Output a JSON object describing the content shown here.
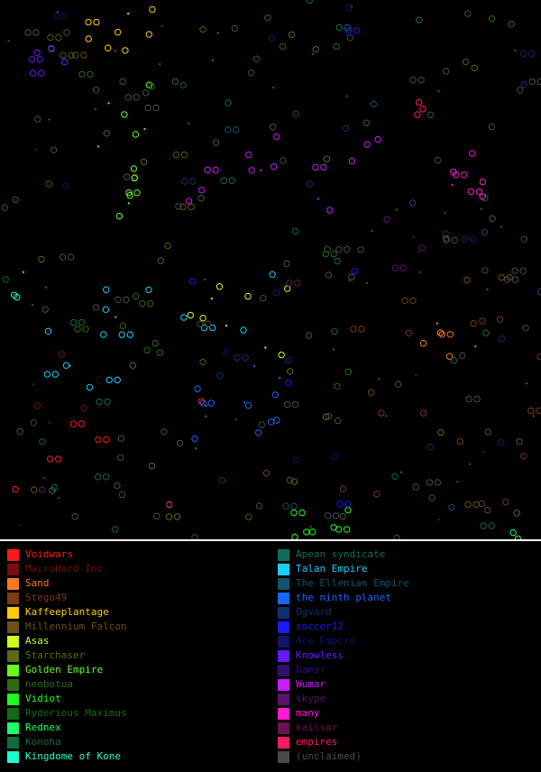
{
  "map": {
    "title": "",
    "empires": [
      {
        "name": "Voidwars",
        "color": "#ff1a1a"
      },
      {
        "name": "MacroHard Inc.",
        "color": "#7a0d0d"
      },
      {
        "name": "Sand",
        "color": "#ff7a1a"
      },
      {
        "name": "Stego49",
        "color": "#7a3a12"
      },
      {
        "name": "Kaffeeplantage",
        "color": "#ffcc00"
      },
      {
        "name": "Millennium Falcon",
        "color": "#6b5212"
      },
      {
        "name": "Asas",
        "color": "#ccff1a"
      },
      {
        "name": "Starchaser",
        "color": "#5a6b12"
      },
      {
        "name": "Golden Empire",
        "color": "#66ff1a"
      },
      {
        "name": "neobotua",
        "color": "#2e6b12"
      },
      {
        "name": "Vidiot",
        "color": "#1aff1a"
      },
      {
        "name": "Ryderious Maximus",
        "color": "#126b12"
      },
      {
        "name": "Rednex",
        "color": "#1aff66"
      },
      {
        "name": "Konoha",
        "color": "#126b3a"
      },
      {
        "name": "Kingdome of Kone",
        "color": "#1affcc"
      },
      {
        "name": "Apean syndicate",
        "color": "#126b5a"
      },
      {
        "name": "Talan Empire",
        "color": "#1accff"
      },
      {
        "name": "The Ellenian Empire",
        "color": "#12526b"
      },
      {
        "name": "the ninth planet",
        "color": "#1a66ff"
      },
      {
        "name": "Ogvard",
        "color": "#12306b"
      },
      {
        "name": "soccer12",
        "color": "#1a1aff"
      },
      {
        "name": "Ace Empire",
        "color": "#12126b"
      },
      {
        "name": "Knowless",
        "color": "#661aff"
      },
      {
        "name": "Damar",
        "color": "#30126b"
      },
      {
        "name": "Wumar",
        "color": "#cc1aff"
      },
      {
        "name": "skype",
        "color": "#5a126b"
      },
      {
        "name": "many",
        "color": "#ff1acc"
      },
      {
        "name": "kailsor",
        "color": "#6b1252"
      },
      {
        "name": "empires",
        "color": "#ff1a66"
      },
      {
        "name": "(unclaimed)",
        "color": "#4a4a4a"
      }
    ]
  }
}
